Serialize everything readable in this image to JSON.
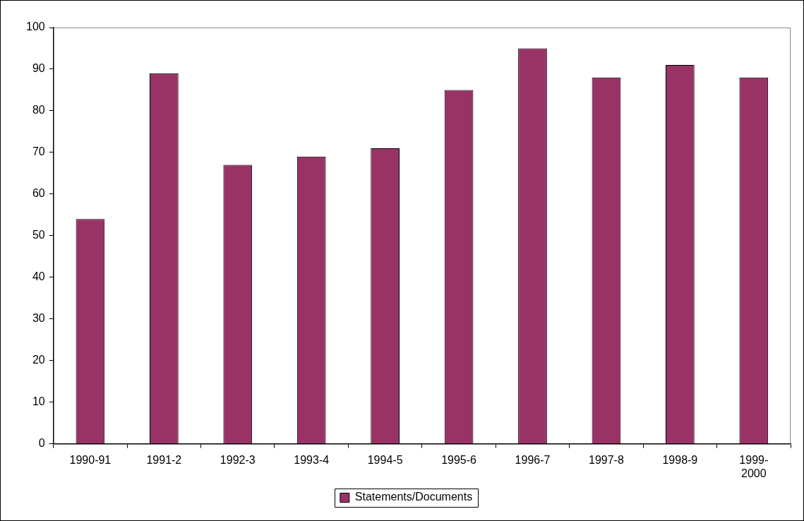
{
  "chart_data": {
    "type": "bar",
    "categories": [
      "1990-91",
      "1991-2",
      "1992-3",
      "1993-4",
      "1994-5",
      "1995-6",
      "1996-7",
      "1997-8",
      "1998-9",
      "1999-2000"
    ],
    "series": [
      {
        "name": "Statements/Documents",
        "color": "#993366",
        "values": [
          54,
          89,
          67,
          69,
          71,
          85,
          95,
          88,
          91,
          88
        ]
      }
    ],
    "ylim": [
      0,
      100
    ],
    "yticks": [
      0,
      10,
      20,
      30,
      40,
      50,
      60,
      70,
      80,
      90,
      100
    ],
    "grid": false,
    "legend": "bottom"
  }
}
